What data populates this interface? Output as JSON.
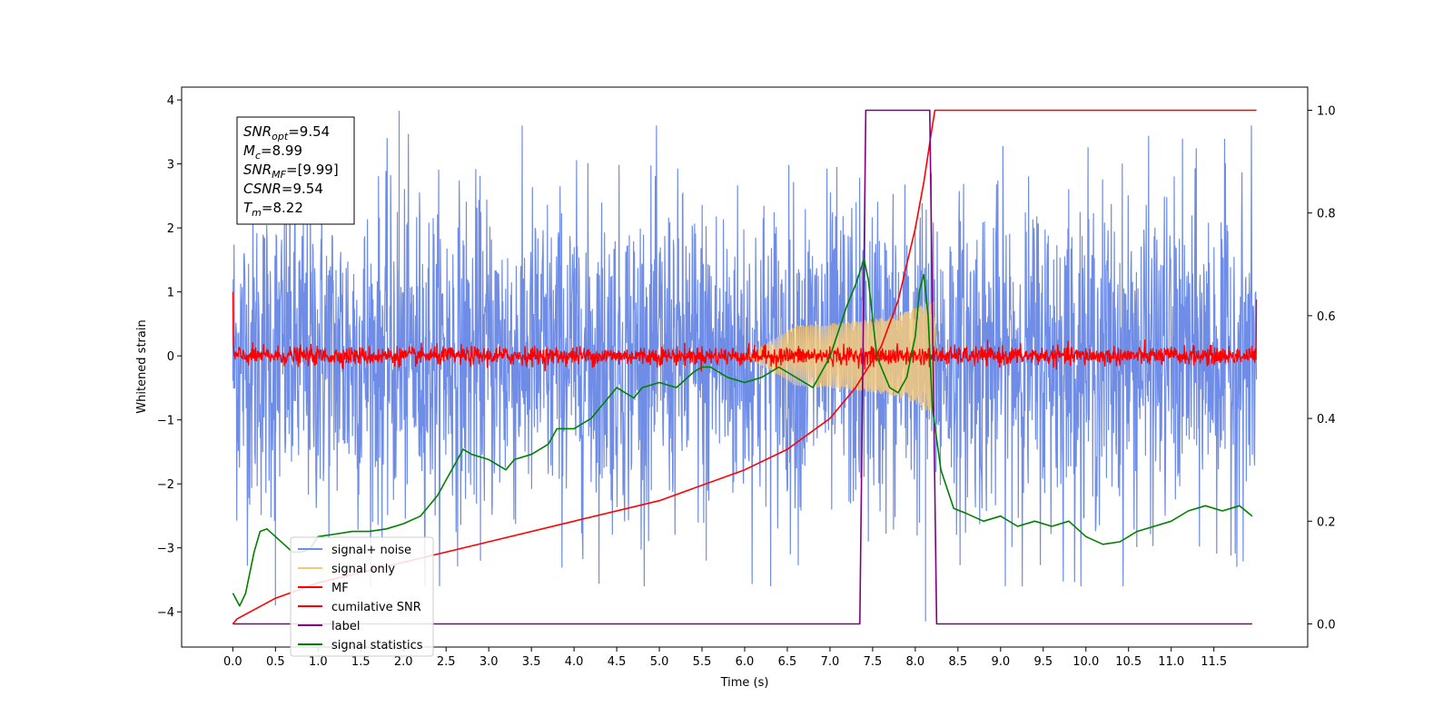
{
  "chart_data": {
    "type": "line",
    "xlabel": "Time (s)",
    "ylabel": "Whitened strain",
    "xlim": [
      -0.6,
      12.6
    ],
    "ylim": [
      -4.55,
      4.2
    ],
    "y2lim": [
      -0.045,
      1.045
    ],
    "xticks": [
      "0.0",
      "0.5",
      "1.0",
      "1.5",
      "2.0",
      "2.5",
      "3.0",
      "3.5",
      "4.0",
      "4.5",
      "5.0",
      "5.5",
      "6.0",
      "6.5",
      "7.0",
      "7.5",
      "8.0",
      "8.5",
      "9.0",
      "9.5",
      "10.0",
      "10.5",
      "11.0",
      "11.5"
    ],
    "yticks": [
      "4",
      "3",
      "2",
      "1",
      "0",
      "−1",
      "−2",
      "−3",
      "−4"
    ],
    "y2ticks": [
      "1.0",
      "0.8",
      "0.6",
      "0.4",
      "0.2",
      "0.0"
    ],
    "info_box": [
      {
        "label": "SNR",
        "sub": "opt",
        "value": "=9.54"
      },
      {
        "label": "M",
        "sub": "c",
        "value": "=8.99"
      },
      {
        "label": "SNR",
        "sub": "MF",
        "value": "=[9.99]"
      },
      {
        "label": "CSNR",
        "sub": "",
        "value": "=9.54"
      },
      {
        "label": "T",
        "sub": "m",
        "value": "=8.22"
      }
    ],
    "legend": {
      "position": "lower-left",
      "entries": [
        {
          "name": "signal+ noise",
          "color": "#6f8de6"
        },
        {
          "name": "signal only",
          "color": "#f5c97a"
        },
        {
          "name": "MF",
          "color": "#ff0000"
        },
        {
          "name": "cumilative SNR",
          "color": "#ff0000"
        },
        {
          "name": "label",
          "color": "#800080"
        },
        {
          "name": "signal statistics",
          "color": "#008000"
        }
      ]
    },
    "series": [
      {
        "key": "noise",
        "axis": "left",
        "color": "#6f8de6",
        "range": [
          0,
          12
        ],
        "envelope": 1.25,
        "note_spikes": [
          [
            1.95,
            3.83
          ],
          [
            0.5,
            -3.9
          ],
          [
            7.45,
            -2.9
          ],
          [
            8.12,
            -4.15
          ],
          [
            5.55,
            -3.2
          ]
        ]
      },
      {
        "key": "signal",
        "axis": "left",
        "color": "#f5c97a",
        "chirp_start": 6.0,
        "chirp_end": 8.22,
        "peak_amp": 0.75
      },
      {
        "key": "mf",
        "axis": "left",
        "color": "#ff0000",
        "range": [
          0,
          12
        ],
        "noise_amp": 0.12,
        "start_value": 1.0,
        "end_value": 0.88
      },
      {
        "key": "csnr",
        "axis": "right",
        "color": "#ff0000",
        "x": [
          0.0,
          0.05,
          0.5,
          1.0,
          2.0,
          3.0,
          4.0,
          5.0,
          6.0,
          6.5,
          7.0,
          7.3,
          7.6,
          7.8,
          8.0,
          8.1,
          8.2,
          8.23,
          12.0
        ],
        "y": [
          0.0,
          0.01,
          0.05,
          0.08,
          0.12,
          0.16,
          0.2,
          0.24,
          0.3,
          0.34,
          0.4,
          0.46,
          0.54,
          0.63,
          0.77,
          0.86,
          0.97,
          1.0,
          1.0
        ]
      },
      {
        "key": "label",
        "axis": "right",
        "color": "#800080",
        "x": [
          0.0,
          7.35,
          7.42,
          8.17,
          8.25,
          11.95
        ],
        "y": [
          0.0,
          0.0,
          1.0,
          1.0,
          0.0,
          0.0
        ]
      },
      {
        "key": "stats",
        "axis": "right",
        "color": "#008000",
        "x": [
          0.0,
          0.08,
          0.15,
          0.25,
          0.32,
          0.4,
          0.5,
          0.6,
          0.7,
          0.8,
          0.9,
          1.0,
          1.2,
          1.4,
          1.6,
          1.8,
          2.0,
          2.2,
          2.4,
          2.5,
          2.6,
          2.7,
          2.8,
          3.0,
          3.2,
          3.3,
          3.5,
          3.7,
          3.8,
          4.0,
          4.2,
          4.4,
          4.5,
          4.6,
          4.7,
          4.8,
          5.0,
          5.2,
          5.4,
          5.5,
          5.6,
          5.8,
          6.0,
          6.2,
          6.4,
          6.6,
          6.8,
          7.0,
          7.1,
          7.2,
          7.3,
          7.4,
          7.45,
          7.55,
          7.7,
          7.8,
          7.9,
          8.0,
          8.05,
          8.1,
          8.15,
          8.2,
          8.3,
          8.45,
          8.6,
          8.8,
          9.0,
          9.2,
          9.4,
          9.6,
          9.8,
          10.0,
          10.2,
          10.4,
          10.6,
          10.8,
          11.0,
          11.2,
          11.4,
          11.6,
          11.8,
          11.95
        ],
        "y": [
          0.06,
          0.035,
          0.06,
          0.14,
          0.18,
          0.185,
          0.17,
          0.155,
          0.14,
          0.14,
          0.145,
          0.17,
          0.175,
          0.18,
          0.18,
          0.185,
          0.195,
          0.21,
          0.25,
          0.28,
          0.31,
          0.34,
          0.33,
          0.32,
          0.3,
          0.32,
          0.33,
          0.35,
          0.38,
          0.38,
          0.4,
          0.44,
          0.46,
          0.45,
          0.44,
          0.46,
          0.47,
          0.46,
          0.49,
          0.5,
          0.5,
          0.48,
          0.47,
          0.48,
          0.5,
          0.48,
          0.46,
          0.52,
          0.57,
          0.62,
          0.66,
          0.71,
          0.67,
          0.52,
          0.46,
          0.45,
          0.48,
          0.56,
          0.65,
          0.68,
          0.6,
          0.42,
          0.3,
          0.225,
          0.215,
          0.2,
          0.21,
          0.19,
          0.2,
          0.19,
          0.2,
          0.17,
          0.155,
          0.16,
          0.18,
          0.19,
          0.2,
          0.22,
          0.23,
          0.22,
          0.23,
          0.21
        ]
      }
    ]
  }
}
